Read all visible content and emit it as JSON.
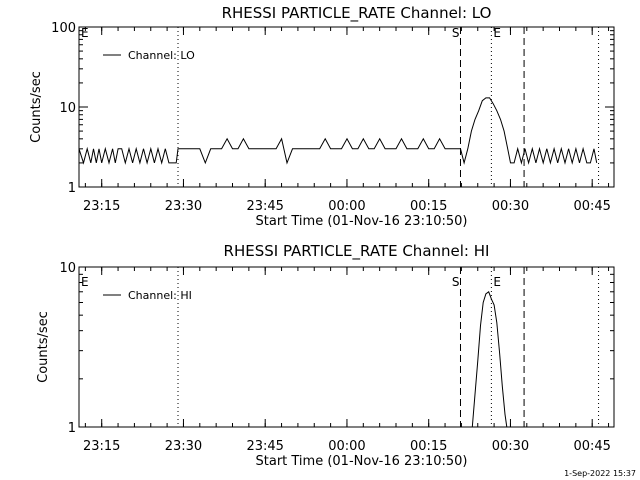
{
  "chart_data": [
    {
      "type": "line",
      "title": "RHESSI PARTICLE_RATE Channel: LO",
      "xlabel": "Start Time (01-Nov-16 23:10:50)",
      "ylabel": "Counts/sec",
      "yscale": "log",
      "ylim": [
        1,
        100
      ],
      "xlim": [
        "23:10:50",
        "00:49:00"
      ],
      "x_ticks": [
        "23:15",
        "23:30",
        "23:45",
        "00:00",
        "00:15",
        "00:30",
        "00:45"
      ],
      "y_ticks": [
        "1",
        "10",
        "100"
      ],
      "legend": {
        "placement": "top-left",
        "entries": [
          "Channel: LO"
        ]
      },
      "markers": [
        {
          "label": "E",
          "time": "23:10:50",
          "style": "none"
        },
        {
          "label": "",
          "time": "23:29:00",
          "style": "dotted"
        },
        {
          "label": "S",
          "time": "00:20:50",
          "style": "dashed"
        },
        {
          "label": "E",
          "time": "00:26:30",
          "style": "dotted"
        },
        {
          "label": "",
          "time": "00:32:30",
          "style": "dashed"
        },
        {
          "label": "",
          "time": "00:46:10",
          "style": "dotted"
        }
      ],
      "series": [
        {
          "x": [
            "23:10:50",
            "23:11:40",
            "23:12:20",
            "23:13:00",
            "23:13:30",
            "23:14:00",
            "23:14:30",
            "23:15:00",
            "23:15:40",
            "23:16:20",
            "23:17:00",
            "23:17:30",
            "23:18:00",
            "23:18:40",
            "23:19:20",
            "23:20:00",
            "23:20:40",
            "23:21:20",
            "23:22:00",
            "23:22:40",
            "23:23:20",
            "23:24:00",
            "23:24:40",
            "23:25:20",
            "23:26:00",
            "23:26:40",
            "23:27:20",
            "23:28:00",
            "23:28:40",
            "23:29:00",
            "23:30:00",
            "23:31:00",
            "23:32:00",
            "23:33:00",
            "23:34:00",
            "23:35:00",
            "23:36:00",
            "23:37:00",
            "23:38:00",
            "23:39:00",
            "23:40:00",
            "23:41:00",
            "23:42:00",
            "23:43:00",
            "23:44:00",
            "23:45:00",
            "23:46:00",
            "23:47:00",
            "23:48:00",
            "23:49:00",
            "23:50:00",
            "23:51:00",
            "23:52:00",
            "23:53:00",
            "23:54:00",
            "23:55:00",
            "23:56:00",
            "23:57:00",
            "23:58:00",
            "23:59:00",
            "00:00:00",
            "00:01:00",
            "00:02:00",
            "00:03:00",
            "00:04:00",
            "00:05:00",
            "00:06:00",
            "00:07:00",
            "00:08:00",
            "00:09:00",
            "00:10:00",
            "00:11:00",
            "00:12:00",
            "00:13:00",
            "00:14:00",
            "00:15:00",
            "00:16:00",
            "00:17:00",
            "00:18:00",
            "00:19:00",
            "00:20:00",
            "00:20:50",
            "00:21:30",
            "00:22:10",
            "00:22:50",
            "00:23:30",
            "00:24:10",
            "00:24:50",
            "00:25:30",
            "00:26:10",
            "00:26:50",
            "00:27:30",
            "00:28:10",
            "00:28:50",
            "00:29:30",
            "00:30:00",
            "00:30:40",
            "00:31:20",
            "00:32:00",
            "00:32:40",
            "00:33:20",
            "00:34:00",
            "00:34:40",
            "00:35:20",
            "00:36:00",
            "00:36:40",
            "00:37:20",
            "00:38:00",
            "00:38:40",
            "00:39:20",
            "00:40:00",
            "00:40:40",
            "00:41:20",
            "00:42:00",
            "00:42:40",
            "00:43:20",
            "00:44:00",
            "00:44:40",
            "00:45:20",
            "00:45:50"
          ],
          "values": [
            3,
            2,
            3,
            2,
            3,
            2,
            3,
            2,
            3,
            2,
            3,
            2,
            3,
            3,
            2,
            3,
            2,
            3,
            2,
            3,
            2,
            3,
            2,
            3,
            2,
            3,
            2,
            2,
            2,
            3,
            3,
            3,
            3,
            3,
            2,
            3,
            3,
            3,
            4,
            3,
            3,
            4,
            3,
            3,
            3,
            3,
            3,
            3,
            4,
            2,
            3,
            3,
            3,
            3,
            3,
            3,
            4,
            3,
            3,
            3,
            4,
            3,
            3,
            4,
            3,
            3,
            4,
            3,
            3,
            3,
            4,
            3,
            3,
            3,
            4,
            3,
            3,
            4,
            3,
            3,
            3,
            3,
            2,
            3,
            5,
            7,
            9,
            12,
            13,
            13,
            11,
            9,
            7,
            5,
            3,
            2,
            2,
            3,
            2,
            3,
            2,
            3,
            2,
            3,
            2,
            3,
            2,
            3,
            2,
            3,
            2,
            3,
            2,
            3,
            2,
            3,
            2,
            2,
            3,
            2
          ]
        }
      ]
    },
    {
      "type": "line",
      "title": "RHESSI PARTICLE_RATE Channel: HI",
      "xlabel": "Start Time (01-Nov-16 23:10:50)",
      "ylabel": "Counts/sec",
      "yscale": "log",
      "ylim": [
        1,
        10
      ],
      "xlim": [
        "23:10:50",
        "00:49:00"
      ],
      "x_ticks": [
        "23:15",
        "23:30",
        "23:45",
        "00:00",
        "00:15",
        "00:30",
        "00:45"
      ],
      "y_ticks": [
        "1",
        "10"
      ],
      "legend": {
        "placement": "top-left",
        "entries": [
          "Channel: HI"
        ]
      },
      "markers": [
        {
          "label": "E",
          "time": "23:10:50",
          "style": "none"
        },
        {
          "label": "",
          "time": "23:29:00",
          "style": "dotted"
        },
        {
          "label": "S",
          "time": "00:20:50",
          "style": "dashed"
        },
        {
          "label": "E",
          "time": "00:26:30",
          "style": "dotted"
        },
        {
          "label": "",
          "time": "00:32:30",
          "style": "dashed"
        },
        {
          "label": "",
          "time": "00:46:10",
          "style": "dotted"
        }
      ],
      "series": [
        {
          "x": [
            "00:23:00",
            "00:23:30",
            "00:24:00",
            "00:24:30",
            "00:25:00",
            "00:25:30",
            "00:26:00",
            "00:26:30",
            "00:27:00",
            "00:27:30",
            "00:28:00",
            "00:28:30",
            "00:29:00",
            "00:29:20"
          ],
          "values": [
            1,
            1.6,
            2.6,
            4.3,
            6.0,
            6.8,
            7.0,
            6.3,
            5.8,
            4.5,
            2.9,
            1.8,
            1.2,
            1
          ]
        }
      ]
    }
  ],
  "footer": {
    "timestamp": "1-Sep-2022 15:37"
  }
}
